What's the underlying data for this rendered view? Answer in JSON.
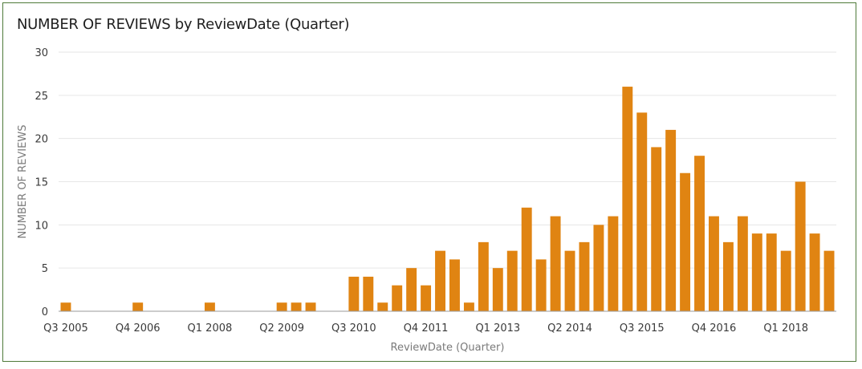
{
  "chart_data": {
    "type": "bar",
    "title": "NUMBER OF REVIEWS by ReviewDate (Quarter)",
    "xlabel": "ReviewDate (Quarter)",
    "ylabel": "NUMBER OF REVIEWS",
    "ylim": [
      0,
      30
    ],
    "yticks": [
      0,
      5,
      10,
      15,
      20,
      25,
      30
    ],
    "grid": true,
    "colors": {
      "bar": "#e08412",
      "grid": "#e6e6e6",
      "axis": "#9a9a9a",
      "border": "#4f7a3a"
    },
    "x_tick_labels": [
      "Q3 2005",
      "Q4 2006",
      "Q1 2008",
      "Q2 2009",
      "Q3 2010",
      "Q4 2011",
      "Q1 2013",
      "Q2 2014",
      "Q3 2015",
      "Q4 2016",
      "Q1 2018"
    ],
    "categories": [
      "Q3 2005",
      "Q4 2005",
      "Q1 2006",
      "Q2 2006",
      "Q3 2006",
      "Q4 2006",
      "Q1 2007",
      "Q2 2007",
      "Q3 2007",
      "Q4 2007",
      "Q1 2008",
      "Q2 2008",
      "Q3 2008",
      "Q4 2008",
      "Q1 2009",
      "Q2 2009",
      "Q3 2009",
      "Q4 2009",
      "Q1 2010",
      "Q2 2010",
      "Q3 2010",
      "Q4 2010",
      "Q1 2011",
      "Q2 2011",
      "Q3 2011",
      "Q4 2011",
      "Q1 2012",
      "Q2 2012",
      "Q3 2012",
      "Q4 2012",
      "Q1 2013",
      "Q2 2013",
      "Q3 2013",
      "Q4 2013",
      "Q1 2014",
      "Q2 2014",
      "Q3 2014",
      "Q4 2014",
      "Q1 2015",
      "Q2 2015",
      "Q3 2015",
      "Q4 2015",
      "Q1 2016",
      "Q2 2016",
      "Q3 2016",
      "Q4 2016",
      "Q1 2017",
      "Q2 2017",
      "Q3 2017",
      "Q4 2017",
      "Q1 2018",
      "Q2 2018",
      "Q3 2018",
      "Q4 2018"
    ],
    "values": [
      1,
      0,
      0,
      0,
      0,
      1,
      0,
      0,
      0,
      0,
      1,
      0,
      0,
      0,
      0,
      1,
      1,
      1,
      0,
      0,
      4,
      4,
      1,
      3,
      5,
      3,
      7,
      6,
      1,
      8,
      5,
      7,
      12,
      6,
      11,
      7,
      8,
      10,
      11,
      26,
      23,
      19,
      21,
      16,
      18,
      11,
      8,
      11,
      9,
      9,
      7,
      15,
      9,
      7
    ]
  }
}
